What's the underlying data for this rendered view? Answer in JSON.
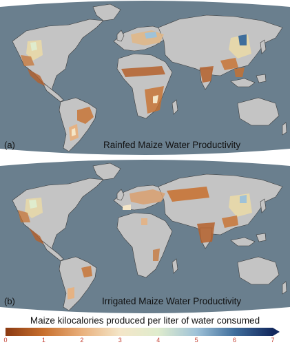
{
  "panels": [
    {
      "letter": "(a)",
      "title": "Rainfed Maize Water Productivity"
    },
    {
      "letter": "(b)",
      "title": "Irrigated Maize Water Productivity"
    }
  ],
  "legend": {
    "title": "Maize kilocalories produced per liter of water consumed",
    "min": 0,
    "max": 7,
    "ticks": [
      "0",
      "1",
      "2",
      "3",
      "4",
      "5",
      "6",
      "7"
    ],
    "colors": [
      "#8b3a12",
      "#c8702e",
      "#e9b07c",
      "#f4e6c8",
      "#dfeccd",
      "#9fc2d8",
      "#3f6e9c",
      "#13295e"
    ]
  },
  "colors": {
    "ocean": "#6a7f8e",
    "land": "#c4c4c4",
    "borders": "#3a3a3a"
  }
}
